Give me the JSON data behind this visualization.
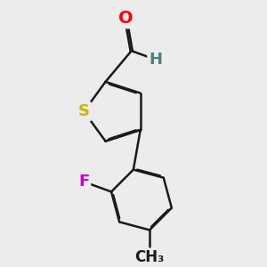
{
  "bg_color": "#ececec",
  "bond_color": "#1a1a1a",
  "bond_width": 1.8,
  "dbo": 0.018,
  "atom_colors": {
    "S": "#c8b400",
    "O": "#ff0000",
    "F": "#cc00cc",
    "C": "#1a1a1a",
    "H": "#4a8080"
  },
  "font_size": 13
}
